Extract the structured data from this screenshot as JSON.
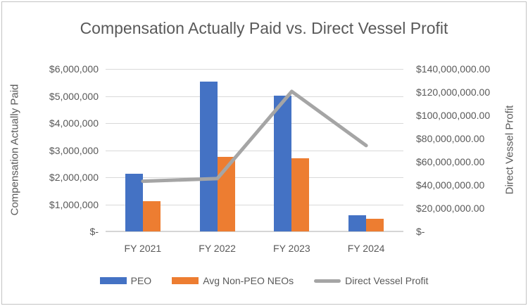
{
  "title": "Compensation Actually Paid vs. Direct Vessel Profit",
  "colors": {
    "peo_bar": "#4472C4",
    "non_peo_bar": "#ED7D31",
    "dvp_line": "#A5A5A5",
    "gridline": "#D9D9D9",
    "text": "#595959"
  },
  "axes": {
    "left": {
      "title": "Compensation Actually Paid",
      "tick_labels": [
        "$6,000,000",
        "$5,000,000",
        "$4,000,000",
        "$3,000,000",
        "$2,000,000",
        "$1,000,000",
        "$-"
      ]
    },
    "right": {
      "title": "Direct Vessel Profit",
      "tick_labels": [
        "$140,000,000.00",
        "$120,000,000.00",
        "$100,000,000.00",
        "$80,000,000.00",
        "$60,000,000.00",
        "$40,000,000.00",
        "$20,000,000.00",
        "$-"
      ]
    },
    "x": {
      "tick_labels": [
        "FY 2021",
        "FY 2022",
        "FY 2023",
        "FY 2024"
      ]
    }
  },
  "legend": {
    "items": [
      {
        "id": "peo",
        "label": "PEO",
        "swatch": "bar",
        "color": "#4472C4"
      },
      {
        "id": "avg-non-peo-neos",
        "label": "Avg Non-PEO NEOs",
        "swatch": "bar",
        "color": "#ED7D31"
      },
      {
        "id": "direct-vessel-profit",
        "label": "Direct Vessel Profit",
        "swatch": "line",
        "color": "#A5A5A5"
      }
    ]
  },
  "chart_data": {
    "type": "combo (bar + line)",
    "title": "Compensation Actually Paid vs. Direct Vessel Profit",
    "categories": [
      "FY 2021",
      "FY 2022",
      "FY 2023",
      "FY 2024"
    ],
    "series": [
      {
        "name": "PEO",
        "type": "bar",
        "axis": "left",
        "color": "#4472C4",
        "values": [
          2130000,
          5530000,
          5000000,
          600000
        ]
      },
      {
        "name": "Avg Non-PEO NEOs",
        "type": "bar",
        "axis": "left",
        "color": "#ED7D31",
        "values": [
          1120000,
          2750000,
          2710000,
          470000
        ]
      },
      {
        "name": "Direct Vessel Profit",
        "type": "line",
        "axis": "right",
        "color": "#A5A5A5",
        "values": [
          43300000,
          45500000,
          120600000,
          74000000
        ]
      }
    ],
    "left_axis_label": "Compensation Actually Paid",
    "right_axis_label": "Direct Vessel Profit",
    "left_ylim": [
      0,
      6000000
    ],
    "right_ylim": [
      0,
      140000000
    ],
    "left_tick_step": 1000000,
    "right_tick_step": 20000000,
    "grid": true,
    "legend_position": "bottom"
  }
}
